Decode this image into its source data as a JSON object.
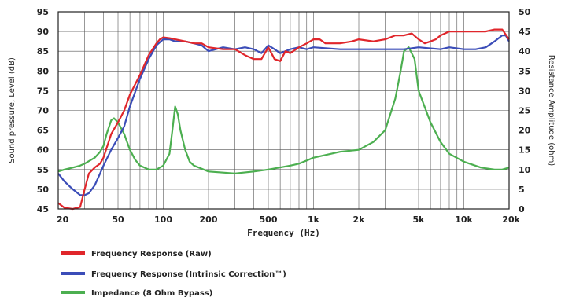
{
  "chart_data": {
    "type": "line",
    "xlabel": "Frequency (Hz)",
    "ylabel_left": "Sound pressure, Level (dB)",
    "ylabel_right": "Resistance Amplitude (ohm)",
    "xscale": "log",
    "xlim": [
      20,
      20000
    ],
    "ylim_left": [
      45,
      95
    ],
    "ylim_right": [
      0,
      50
    ],
    "grid": true,
    "legend_position": "bottom-left",
    "x_ticks": [
      {
        "value": 20,
        "label": "20"
      },
      {
        "value": 50,
        "label": "50"
      },
      {
        "value": 100,
        "label": "100"
      },
      {
        "value": 200,
        "label": "200"
      },
      {
        "value": 500,
        "label": "500"
      },
      {
        "value": 1000,
        "label": "1k"
      },
      {
        "value": 2000,
        "label": "2k"
      },
      {
        "value": 5000,
        "label": "5k"
      },
      {
        "value": 10000,
        "label": "10k"
      },
      {
        "value": 20000,
        "label": "20k"
      }
    ],
    "y_ticks_left": [
      "45",
      "50",
      "55",
      "60",
      "65",
      "70",
      "75",
      "80",
      "85",
      "90",
      "95"
    ],
    "y_ticks_right": [
      "0",
      "5",
      "10",
      "15",
      "20",
      "25",
      "30",
      "35",
      "40",
      "45",
      "50"
    ],
    "series": [
      {
        "name": "Frequency Response (Raw)",
        "color": "#e0262b",
        "axis": "left",
        "points": [
          [
            20,
            46.5
          ],
          [
            22,
            45.3
          ],
          [
            25,
            45
          ],
          [
            28,
            45.5
          ],
          [
            30,
            50
          ],
          [
            32,
            54
          ],
          [
            35,
            55.5
          ],
          [
            38,
            56.5
          ],
          [
            40,
            58
          ],
          [
            45,
            64
          ],
          [
            50,
            67
          ],
          [
            55,
            70
          ],
          [
            60,
            74
          ],
          [
            70,
            79
          ],
          [
            80,
            84
          ],
          [
            90,
            87
          ],
          [
            95,
            88
          ],
          [
            100,
            88.5
          ],
          [
            110,
            88.3
          ],
          [
            120,
            88
          ],
          [
            140,
            87.5
          ],
          [
            160,
            87
          ],
          [
            180,
            87
          ],
          [
            200,
            86
          ],
          [
            250,
            85.5
          ],
          [
            300,
            85.5
          ],
          [
            350,
            84
          ],
          [
            400,
            83
          ],
          [
            450,
            83
          ],
          [
            500,
            86
          ],
          [
            550,
            83
          ],
          [
            600,
            82.5
          ],
          [
            650,
            85
          ],
          [
            700,
            84.5
          ],
          [
            800,
            86
          ],
          [
            900,
            87
          ],
          [
            1000,
            88
          ],
          [
            1100,
            88
          ],
          [
            1200,
            87
          ],
          [
            1500,
            87
          ],
          [
            1800,
            87.5
          ],
          [
            2000,
            88
          ],
          [
            2500,
            87.5
          ],
          [
            3000,
            88
          ],
          [
            3500,
            89
          ],
          [
            4000,
            89
          ],
          [
            4500,
            89.5
          ],
          [
            5000,
            88
          ],
          [
            5500,
            87
          ],
          [
            6000,
            87.5
          ],
          [
            6500,
            88
          ],
          [
            7000,
            89
          ],
          [
            8000,
            90
          ],
          [
            9000,
            90
          ],
          [
            10000,
            90
          ],
          [
            12000,
            90
          ],
          [
            14000,
            90
          ],
          [
            16000,
            90.5
          ],
          [
            18000,
            90.5
          ],
          [
            20000,
            88
          ]
        ]
      },
      {
        "name": "Frequency Response (Intrinsic Correction™)",
        "color": "#3b4db8",
        "axis": "left",
        "points": [
          [
            20,
            54
          ],
          [
            22,
            52
          ],
          [
            25,
            50
          ],
          [
            28,
            48.5
          ],
          [
            30,
            48.5
          ],
          [
            32,
            49
          ],
          [
            35,
            51
          ],
          [
            38,
            54
          ],
          [
            40,
            56
          ],
          [
            45,
            60
          ],
          [
            50,
            63
          ],
          [
            55,
            66
          ],
          [
            60,
            71
          ],
          [
            70,
            78
          ],
          [
            80,
            83
          ],
          [
            90,
            86.5
          ],
          [
            100,
            88
          ],
          [
            110,
            88
          ],
          [
            120,
            87.5
          ],
          [
            140,
            87.5
          ],
          [
            160,
            87
          ],
          [
            180,
            86.5
          ],
          [
            200,
            85
          ],
          [
            250,
            86
          ],
          [
            300,
            85.5
          ],
          [
            350,
            86
          ],
          [
            400,
            85.5
          ],
          [
            450,
            84.5
          ],
          [
            500,
            86.5
          ],
          [
            550,
            85.5
          ],
          [
            600,
            84.5
          ],
          [
            650,
            85
          ],
          [
            700,
            85.5
          ],
          [
            800,
            86
          ],
          [
            900,
            85.5
          ],
          [
            1000,
            86
          ],
          [
            1500,
            85.5
          ],
          [
            2000,
            85.5
          ],
          [
            3000,
            85.5
          ],
          [
            4000,
            85.5
          ],
          [
            5000,
            86
          ],
          [
            7000,
            85.5
          ],
          [
            8000,
            86
          ],
          [
            10000,
            85.5
          ],
          [
            12000,
            85.5
          ],
          [
            14000,
            86
          ],
          [
            16000,
            87.5
          ],
          [
            18000,
            89
          ],
          [
            19000,
            89
          ],
          [
            20000,
            87.5
          ]
        ]
      },
      {
        "name": "Impedance (8 Ohm Bypass)",
        "color": "#4caf50",
        "axis": "right",
        "points": [
          [
            20,
            9.5
          ],
          [
            22,
            10
          ],
          [
            25,
            10.5
          ],
          [
            28,
            11
          ],
          [
            30,
            11.5
          ],
          [
            35,
            13
          ],
          [
            38,
            14.5
          ],
          [
            40,
            16
          ],
          [
            42,
            19
          ],
          [
            45,
            22.5
          ],
          [
            47,
            23
          ],
          [
            50,
            22
          ],
          [
            55,
            19
          ],
          [
            60,
            15
          ],
          [
            65,
            12.5
          ],
          [
            70,
            11
          ],
          [
            80,
            10
          ],
          [
            90,
            10
          ],
          [
            100,
            11
          ],
          [
            110,
            14
          ],
          [
            115,
            20
          ],
          [
            120,
            26
          ],
          [
            125,
            24
          ],
          [
            130,
            20
          ],
          [
            140,
            15
          ],
          [
            150,
            12
          ],
          [
            160,
            11
          ],
          [
            200,
            9.5
          ],
          [
            300,
            9
          ],
          [
            400,
            9.5
          ],
          [
            500,
            10
          ],
          [
            700,
            11
          ],
          [
            800,
            11.5
          ],
          [
            1000,
            13
          ],
          [
            1500,
            14.5
          ],
          [
            2000,
            15
          ],
          [
            2500,
            17
          ],
          [
            3000,
            20
          ],
          [
            3500,
            28
          ],
          [
            3800,
            35
          ],
          [
            4000,
            40
          ],
          [
            4300,
            41
          ],
          [
            4700,
            38
          ],
          [
            5000,
            30
          ],
          [
            6000,
            22
          ],
          [
            7000,
            17
          ],
          [
            8000,
            14
          ],
          [
            10000,
            12
          ],
          [
            13000,
            10.5
          ],
          [
            16000,
            10
          ],
          [
            18000,
            10
          ],
          [
            20000,
            10.5
          ]
        ]
      }
    ]
  }
}
